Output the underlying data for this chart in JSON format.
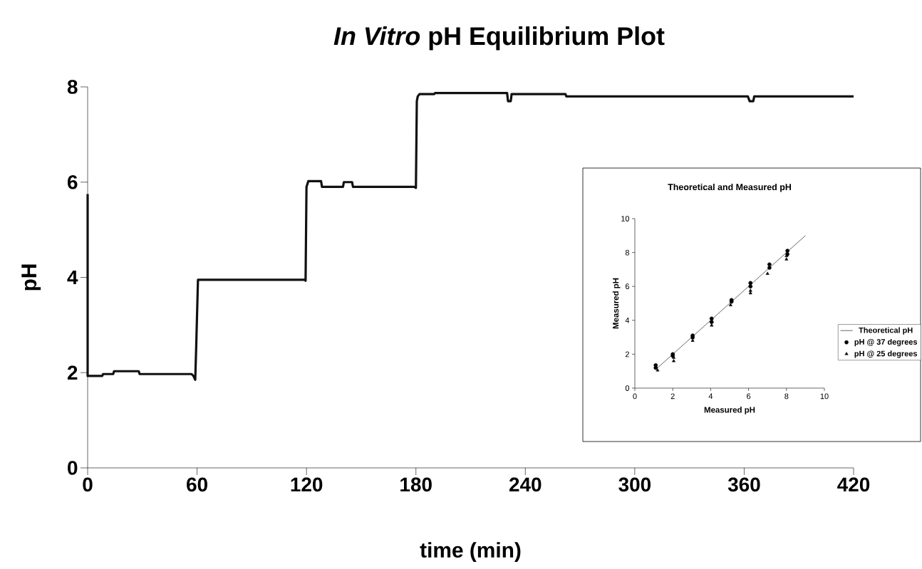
{
  "chart_data": [
    {
      "type": "line",
      "title": "*In Vitro* pH Equilibrium Plot",
      "xlabel": "time (min)",
      "ylabel": "pH",
      "xlim": [
        0,
        420
      ],
      "ylim": [
        0,
        8
      ],
      "xticks": [
        0,
        60,
        120,
        180,
        240,
        300,
        360,
        420
      ],
      "yticks": [
        0,
        2,
        4,
        6,
        8
      ],
      "marker": "none",
      "legend": false,
      "grid": false,
      "series": [
        {
          "color": "#111111",
          "x": [
            0,
            0,
            0.5,
            8,
            8.5,
            14,
            14.5,
            28,
            28.5,
            57,
            58,
            59,
            59.5,
            60.5,
            119,
            119.5,
            120,
            121,
            128,
            128.5,
            140,
            140.5,
            145,
            145.5,
            179,
            180,
            180.5,
            181,
            182,
            190,
            190.5,
            230,
            230.5,
            232,
            232.5,
            262,
            262.5,
            362,
            363,
            365,
            365.5,
            420
          ],
          "values": [
            5.75,
            1.93,
            1.93,
            1.93,
            1.97,
            1.97,
            2.03,
            2.03,
            1.97,
            1.97,
            1.93,
            1.85,
            2.5,
            3.95,
            3.95,
            3.93,
            5.9,
            6.02,
            6.02,
            5.9,
            5.9,
            6.0,
            6.0,
            5.9,
            5.9,
            5.88,
            7.7,
            7.8,
            7.85,
            7.85,
            7.87,
            7.87,
            7.7,
            7.7,
            7.85,
            7.85,
            7.8,
            7.8,
            7.7,
            7.7,
            7.8,
            7.8
          ]
        }
      ]
    },
    {
      "type": "scatter",
      "title": "Theoretical and Measured pH",
      "xlabel": "Measured pH",
      "ylabel": "Measured pH",
      "xlim": [
        0,
        10
      ],
      "ylim": [
        0,
        10
      ],
      "xticks": [
        0,
        2,
        4,
        6,
        8,
        10
      ],
      "yticks": [
        0,
        2,
        4,
        6,
        8,
        10
      ],
      "legend": "right",
      "grid": false,
      "series": [
        {
          "name": "Theoretical pH",
          "type": "line",
          "marker": "none",
          "color": "#000000",
          "x": [
            1.2,
            9
          ],
          "values": [
            1.2,
            9
          ]
        },
        {
          "name": "pH @ 37 degrees",
          "marker": "circle",
          "color": "#000000",
          "x": [
            1.1,
            1.1,
            2.0,
            2.0,
            3.05,
            3.05,
            4.05,
            4.05,
            5.1,
            5.1,
            6.1,
            6.1,
            7.1,
            7.1,
            8.05,
            8.05
          ],
          "values": [
            1.35,
            1.2,
            2.0,
            1.9,
            3.1,
            3.0,
            4.1,
            3.9,
            5.2,
            5.1,
            6.2,
            6.0,
            7.3,
            7.1,
            8.1,
            7.9
          ]
        },
        {
          "name": "pH @ 25 degrees",
          "marker": "triangle",
          "color": "#000000",
          "x": [
            1.2,
            2.05,
            2.05,
            3.05,
            3.05,
            4.05,
            5.05,
            6.1,
            6.1,
            7.0,
            8.0,
            8.0
          ],
          "values": [
            1.05,
            1.6,
            1.8,
            2.8,
            2.95,
            3.7,
            4.9,
            5.6,
            5.75,
            6.75,
            7.6,
            7.8
          ]
        }
      ]
    }
  ]
}
